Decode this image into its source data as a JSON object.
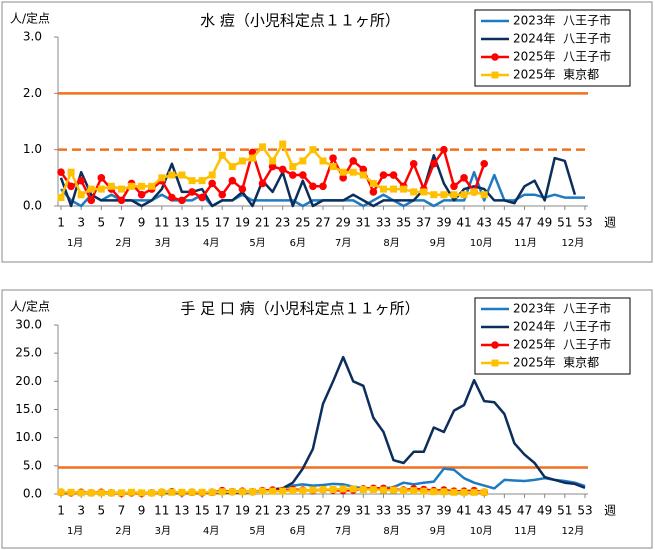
{
  "chart_data": [
    {
      "type": "line",
      "title": "水 痘（小児科定点１１ヶ所）",
      "y_label": "人/定点",
      "x_label": "週",
      "x": [
        1,
        2,
        3,
        4,
        5,
        6,
        7,
        8,
        9,
        10,
        11,
        12,
        13,
        14,
        15,
        16,
        17,
        18,
        19,
        20,
        21,
        22,
        23,
        24,
        25,
        26,
        27,
        28,
        29,
        30,
        31,
        32,
        33,
        34,
        35,
        36,
        37,
        38,
        39,
        40,
        41,
        42,
        43,
        44,
        45,
        46,
        47,
        48,
        49,
        50,
        51,
        52,
        53
      ],
      "xlim": [
        0.7,
        53.3
      ],
      "xticks": [
        1,
        3,
        5,
        7,
        9,
        11,
        13,
        15,
        17,
        19,
        21,
        23,
        25,
        27,
        29,
        31,
        33,
        35,
        37,
        39,
        41,
        43,
        45,
        47,
        49,
        51,
        53
      ],
      "ylim": [
        0,
        3
      ],
      "yticks": [
        {
          "value": 0,
          "label": "0.0"
        },
        {
          "value": 1,
          "label": "1.0"
        },
        {
          "value": 2,
          "label": "2.0"
        },
        {
          "value": 3,
          "label": "3.0"
        }
      ],
      "legend": "upper right",
      "month_labels": [
        {
          "week": 2.4,
          "label": "1月"
        },
        {
          "week": 7.2,
          "label": "2月"
        },
        {
          "week": 11.1,
          "label": "3月"
        },
        {
          "week": 15.9,
          "label": "4月"
        },
        {
          "week": 20.5,
          "label": "5月"
        },
        {
          "week": 24.5,
          "label": "6月"
        },
        {
          "week": 29.0,
          "label": "7月"
        },
        {
          "week": 33.8,
          "label": "8月"
        },
        {
          "week": 38.4,
          "label": "9月"
        },
        {
          "week": 42.7,
          "label": "10月"
        },
        {
          "week": 47.1,
          "label": "11月"
        },
        {
          "week": 51.8,
          "label": "12月"
        }
      ],
      "reference_lines": [
        {
          "value": 2,
          "style": "solid",
          "color": "#f07020"
        },
        {
          "value": 1,
          "style": "dashed",
          "color": "#f07020"
        }
      ],
      "series": [
        {
          "name": "2023年  八王子市",
          "color": "#1f7bc1",
          "marker": "none",
          "values": [
            0.3,
            0.1,
            0.0,
            0.2,
            0.1,
            0.2,
            0.1,
            0.1,
            0.1,
            0.1,
            0.2,
            0.1,
            0.1,
            0.1,
            0.2,
            0.0,
            0.1,
            0.1,
            0.2,
            0.1,
            0.1,
            0.1,
            0.1,
            0.1,
            0.0,
            0.1,
            0.1,
            0.1,
            0.1,
            0.1,
            0.0,
            0.1,
            0.2,
            0.1,
            0.0,
            0.1,
            0.1,
            0.0,
            0.1,
            0.1,
            0.1,
            0.6,
            0.1,
            0.55,
            0.1,
            0.1,
            0.2,
            0.2,
            0.15,
            0.2,
            0.15,
            0.15,
            0.15
          ]
        },
        {
          "name": "2024年  八王子市",
          "color": "#0c2e5c",
          "marker": "none",
          "values": [
            0.5,
            0.0,
            0.6,
            0.2,
            0.1,
            0.1,
            0.1,
            0.1,
            0.0,
            0.1,
            0.3,
            0.75,
            0.25,
            0.25,
            0.3,
            0.0,
            0.1,
            0.1,
            0.25,
            0.0,
            0.45,
            0.25,
            0.6,
            0.0,
            0.45,
            0.0,
            0.1,
            0.1,
            0.1,
            0.2,
            0.1,
            0.0,
            0.1,
            0.1,
            0.1,
            0.1,
            0.3,
            0.9,
            0.4,
            0.1,
            0.3,
            0.35,
            0.3,
            0.1,
            0.1,
            0.05,
            0.35,
            0.45,
            0.1,
            0.85,
            0.8,
            0.2,
            null
          ]
        },
        {
          "name": "2025年  八王子市",
          "color": "#ff0000",
          "marker": "circle",
          "values": [
            0.6,
            0.35,
            0.45,
            0.1,
            0.5,
            0.3,
            0.1,
            0.4,
            0.2,
            0.3,
            0.45,
            0.15,
            0.1,
            0.25,
            0.15,
            0.4,
            0.2,
            0.45,
            0.3,
            0.95,
            0.4,
            0.7,
            0.65,
            0.55,
            0.55,
            0.35,
            0.35,
            0.85,
            0.5,
            0.8,
            0.65,
            0.25,
            0.55,
            0.55,
            0.35,
            0.75,
            0.3,
            0.75,
            1.0,
            0.35,
            0.5,
            0.25,
            0.75,
            null,
            null,
            null,
            null,
            null,
            null,
            null,
            null,
            null,
            null
          ]
        },
        {
          "name": "2025年  東京都",
          "color": "#ffc000",
          "marker": "square",
          "values": [
            0.15,
            0.6,
            0.2,
            0.3,
            0.3,
            0.35,
            0.3,
            0.35,
            0.35,
            0.35,
            0.5,
            0.55,
            0.55,
            0.45,
            0.45,
            0.55,
            0.9,
            0.7,
            0.8,
            0.85,
            1.05,
            0.8,
            1.1,
            0.7,
            0.8,
            1.0,
            0.8,
            0.7,
            0.6,
            0.6,
            0.55,
            0.4,
            0.3,
            0.3,
            0.3,
            0.25,
            0.25,
            0.2,
            0.2,
            0.2,
            0.2,
            0.25,
            0.2,
            null,
            null,
            null,
            null,
            null,
            null,
            null,
            null,
            null,
            null
          ]
        }
      ]
    },
    {
      "type": "line",
      "title": "手 足 口 病（小児科定点１１ヶ所）",
      "y_label": "人/定点",
      "x_label": "週",
      "x": [
        1,
        2,
        3,
        4,
        5,
        6,
        7,
        8,
        9,
        10,
        11,
        12,
        13,
        14,
        15,
        16,
        17,
        18,
        19,
        20,
        21,
        22,
        23,
        24,
        25,
        26,
        27,
        28,
        29,
        30,
        31,
        32,
        33,
        34,
        35,
        36,
        37,
        38,
        39,
        40,
        41,
        42,
        43,
        44,
        45,
        46,
        47,
        48,
        49,
        50,
        51,
        52,
        53
      ],
      "xlim": [
        0.7,
        53.3
      ],
      "xticks": [
        1,
        3,
        5,
        7,
        9,
        11,
        13,
        15,
        17,
        19,
        21,
        23,
        25,
        27,
        29,
        31,
        33,
        35,
        37,
        39,
        41,
        43,
        45,
        47,
        49,
        51,
        53
      ],
      "ylim": [
        0,
        30
      ],
      "yticks": [
        {
          "value": 0,
          "label": "0.0"
        },
        {
          "value": 5,
          "label": "5.0"
        },
        {
          "value": 10,
          "label": "10.0"
        },
        {
          "value": 15,
          "label": "15.0"
        },
        {
          "value": 20,
          "label": "20.0"
        },
        {
          "value": 25,
          "label": "25.0"
        },
        {
          "value": 30,
          "label": "30.0"
        }
      ],
      "legend": "upper right",
      "month_labels": [
        {
          "week": 2.4,
          "label": "1月"
        },
        {
          "week": 7.2,
          "label": "2月"
        },
        {
          "week": 11.1,
          "label": "3月"
        },
        {
          "week": 15.9,
          "label": "4月"
        },
        {
          "week": 20.5,
          "label": "5月"
        },
        {
          "week": 24.5,
          "label": "6月"
        },
        {
          "week": 29.0,
          "label": "7月"
        },
        {
          "week": 33.8,
          "label": "8月"
        },
        {
          "week": 38.4,
          "label": "9月"
        },
        {
          "week": 42.7,
          "label": "10月"
        },
        {
          "week": 47.1,
          "label": "11月"
        },
        {
          "week": 51.8,
          "label": "12月"
        }
      ],
      "reference_lines": [
        {
          "value": 4.7,
          "style": "solid",
          "color": "#f07020"
        }
      ],
      "series": [
        {
          "name": "2023年  八王子市",
          "color": "#1f7bc1",
          "marker": "none",
          "values": [
            0.2,
            0.1,
            0.2,
            0.1,
            0.2,
            0.1,
            0.1,
            0.2,
            0.1,
            0.2,
            0.2,
            0.1,
            0.2,
            0.2,
            0.3,
            0.2,
            0.3,
            0.2,
            0.3,
            0.4,
            0.5,
            0.8,
            1.0,
            1.5,
            1.7,
            1.5,
            1.6,
            1.8,
            1.7,
            1.3,
            1.0,
            1.0,
            1.0,
            1.2,
            2.0,
            1.7,
            2.0,
            2.2,
            4.5,
            4.3,
            2.8,
            2.0,
            1.5,
            1.0,
            2.5,
            2.4,
            2.3,
            2.5,
            2.8,
            2.5,
            2.3,
            2.0,
            1.4
          ]
        },
        {
          "name": "2024年  八王子市",
          "color": "#0c2e5c",
          "marker": "none",
          "values": [
            0.2,
            0.2,
            0.2,
            0.2,
            0.2,
            0.2,
            0.2,
            0.2,
            0.2,
            0.2,
            0.2,
            0.2,
            0.2,
            0.2,
            0.2,
            0.3,
            0.3,
            0.3,
            0.3,
            0.4,
            0.5,
            0.8,
            1.0,
            2.0,
            4.5,
            8.0,
            16.0,
            20.0,
            24.3,
            20.0,
            19.2,
            13.5,
            11.0,
            6.0,
            5.5,
            7.5,
            7.5,
            11.8,
            11.0,
            14.8,
            15.8,
            20.2,
            16.5,
            16.3,
            14.2,
            9.0,
            7.0,
            5.5,
            3.0,
            2.5,
            2.0,
            1.8,
            1.1
          ]
        },
        {
          "name": "2025年  八王子市",
          "color": "#ff0000",
          "marker": "circle",
          "values": [
            0.3,
            0.2,
            0.3,
            0.2,
            0.3,
            0.2,
            0.1,
            0.2,
            0.1,
            0.2,
            0.3,
            0.4,
            0.2,
            0.3,
            0.2,
            0.3,
            0.6,
            0.4,
            0.5,
            0.4,
            0.6,
            0.7,
            0.6,
            0.8,
            0.7,
            0.6,
            0.8,
            0.7,
            0.6,
            0.7,
            0.9,
            1.0,
            1.0,
            0.8,
            0.7,
            0.9,
            0.8,
            0.6,
            0.7,
            0.5,
            0.5,
            0.6,
            0.3,
            null,
            null,
            null,
            null,
            null,
            null,
            null,
            null,
            null,
            null
          ]
        },
        {
          "name": "2025年  東京都",
          "color": "#ffc000",
          "marker": "square",
          "values": [
            0.3,
            0.3,
            0.2,
            0.2,
            0.2,
            0.2,
            0.2,
            0.3,
            0.2,
            0.2,
            0.3,
            0.3,
            0.3,
            0.3,
            0.3,
            0.3,
            0.4,
            0.4,
            0.4,
            0.4,
            0.5,
            0.5,
            0.5,
            0.6,
            0.6,
            0.7,
            0.8,
            0.8,
            0.9,
            0.9,
            0.8,
            0.8,
            0.7,
            0.7,
            0.6,
            0.6,
            0.5,
            0.4,
            0.4,
            0.3,
            0.3,
            0.3,
            0.3,
            null,
            null,
            null,
            null,
            null,
            null,
            null,
            null,
            null,
            null
          ]
        }
      ]
    }
  ]
}
